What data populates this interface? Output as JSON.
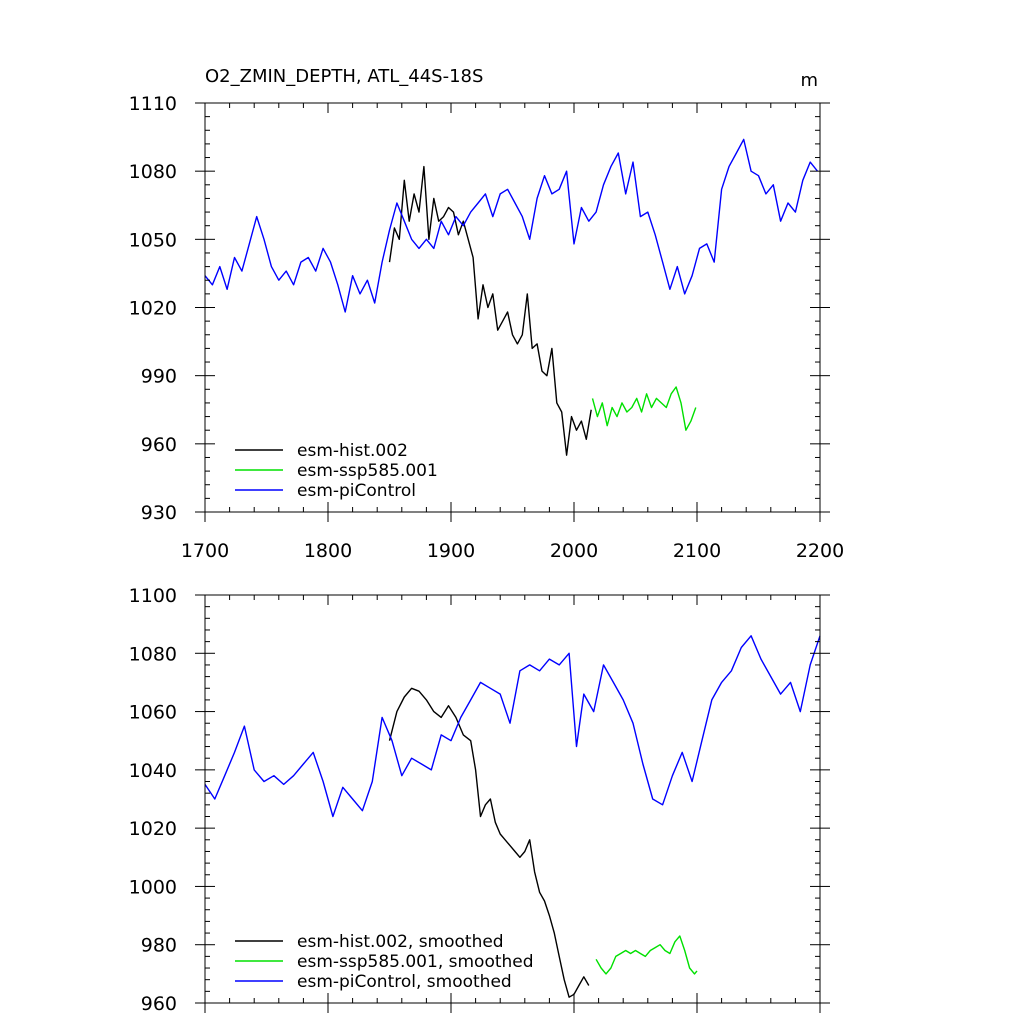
{
  "figure": {
    "title": "O2_ZMIN_DEPTH, ATL_44S-18S",
    "units": "m"
  },
  "colors": {
    "esm-hist": "#000000",
    "esm-ssp585": "#00e000",
    "esm-piControl": "#0000ff",
    "axis": "#000000"
  },
  "chart_data": [
    {
      "type": "line",
      "panel": "top",
      "title": "O2_ZMIN_DEPTH, ATL_44S-18S",
      "units_label": "m",
      "xlim": [
        1700,
        2200
      ],
      "ylim": [
        930,
        1110
      ],
      "xticks": [
        1700,
        1800,
        1900,
        2000,
        2100,
        2200
      ],
      "yticks": [
        930,
        960,
        990,
        1020,
        1050,
        1080,
        1110
      ],
      "xtick_labels": [
        "1700",
        "1800",
        "1900",
        "2000",
        "2100",
        "2200"
      ],
      "ytick_labels": [
        "930",
        "960",
        "990",
        "1020",
        "1050",
        "1080",
        "1110"
      ],
      "legend_position": "bottom-left",
      "series": [
        {
          "name": "esm-hist.002",
          "color": "#000000",
          "x": [
            1850,
            1854,
            1858,
            1862,
            1866,
            1870,
            1874,
            1878,
            1882,
            1886,
            1890,
            1894,
            1898,
            1902,
            1906,
            1910,
            1914,
            1918,
            1922,
            1926,
            1930,
            1934,
            1938,
            1942,
            1946,
            1950,
            1954,
            1958,
            1962,
            1966,
            1970,
            1974,
            1978,
            1982,
            1986,
            1990,
            1994,
            1998,
            2002,
            2006,
            2010,
            2014
          ],
          "values": [
            1040,
            1055,
            1050,
            1076,
            1058,
            1070,
            1062,
            1082,
            1050,
            1068,
            1058,
            1060,
            1064,
            1062,
            1052,
            1058,
            1050,
            1042,
            1015,
            1030,
            1020,
            1026,
            1010,
            1014,
            1018,
            1008,
            1004,
            1008,
            1026,
            1002,
            1004,
            992,
            990,
            1002,
            978,
            974,
            955,
            972,
            966,
            970,
            962,
            975
          ]
        },
        {
          "name": "esm-ssp585.001",
          "color": "#00e000",
          "x": [
            2015,
            2019,
            2023,
            2027,
            2031,
            2035,
            2039,
            2043,
            2047,
            2051,
            2055,
            2059,
            2063,
            2067,
            2071,
            2075,
            2079,
            2083,
            2087,
            2091,
            2095,
            2099
          ],
          "values": [
            980,
            972,
            978,
            968,
            976,
            972,
            978,
            974,
            976,
            980,
            974,
            982,
            976,
            980,
            978,
            976,
            982,
            985,
            978,
            966,
            970,
            976
          ]
        },
        {
          "name": "esm-piControl",
          "color": "#0000ff",
          "x": [
            1700,
            1706,
            1712,
            1718,
            1724,
            1730,
            1736,
            1742,
            1748,
            1754,
            1760,
            1766,
            1772,
            1778,
            1784,
            1790,
            1796,
            1802,
            1808,
            1814,
            1820,
            1826,
            1832,
            1838,
            1844,
            1850,
            1856,
            1862,
            1868,
            1874,
            1880,
            1886,
            1892,
            1898,
            1904,
            1910,
            1916,
            1922,
            1928,
            1934,
            1940,
            1946,
            1952,
            1958,
            1964,
            1970,
            1976,
            1982,
            1988,
            1994,
            2000,
            2006,
            2012,
            2018,
            2024,
            2030,
            2036,
            2042,
            2048,
            2054,
            2060,
            2066,
            2072,
            2078,
            2084,
            2090,
            2096,
            2102,
            2108,
            2114,
            2120,
            2126,
            2132,
            2138,
            2144,
            2150,
            2156,
            2162,
            2168,
            2174,
            2180,
            2186,
            2192,
            2198
          ],
          "values": [
            1034,
            1030,
            1038,
            1028,
            1042,
            1036,
            1048,
            1060,
            1050,
            1038,
            1032,
            1036,
            1030,
            1040,
            1042,
            1036,
            1046,
            1040,
            1030,
            1018,
            1034,
            1026,
            1032,
            1022,
            1040,
            1054,
            1066,
            1058,
            1050,
            1046,
            1050,
            1046,
            1058,
            1052,
            1060,
            1056,
            1062,
            1066,
            1070,
            1060,
            1070,
            1072,
            1066,
            1060,
            1050,
            1068,
            1078,
            1070,
            1072,
            1080,
            1048,
            1064,
            1058,
            1062,
            1074,
            1082,
            1088,
            1070,
            1084,
            1060,
            1062,
            1052,
            1040,
            1028,
            1038,
            1026,
            1034,
            1046,
            1048,
            1040,
            1072,
            1082,
            1088,
            1094,
            1080,
            1078,
            1070,
            1074,
            1058,
            1066,
            1062,
            1076,
            1084,
            1080
          ]
        }
      ]
    },
    {
      "type": "line",
      "panel": "bottom",
      "xlim": [
        1700,
        2200
      ],
      "ylim": [
        960,
        1100
      ],
      "xticks": [
        1700,
        1800,
        1900,
        2000,
        2100,
        2200
      ],
      "yticks": [
        960,
        980,
        1000,
        1020,
        1040,
        1060,
        1080,
        1100
      ],
      "ytick_labels": [
        "960",
        "980",
        "1000",
        "1020",
        "1040",
        "1060",
        "1080",
        "1100"
      ],
      "legend_position": "bottom-left",
      "series": [
        {
          "name": "esm-hist.002, smoothed",
          "color": "#000000",
          "x": [
            1850,
            1856,
            1862,
            1868,
            1874,
            1880,
            1886,
            1892,
            1898,
            1904,
            1910,
            1916,
            1920,
            1924,
            1928,
            1932,
            1936,
            1940,
            1944,
            1948,
            1952,
            1956,
            1960,
            1964,
            1968,
            1972,
            1976,
            1980,
            1984,
            1988,
            1992,
            1996,
            2000,
            2004,
            2008,
            2012
          ],
          "values": [
            1050,
            1060,
            1065,
            1068,
            1067,
            1064,
            1060,
            1058,
            1062,
            1058,
            1052,
            1050,
            1040,
            1024,
            1028,
            1030,
            1022,
            1018,
            1016,
            1014,
            1012,
            1010,
            1012,
            1016,
            1005,
            998,
            995,
            990,
            984,
            976,
            968,
            962,
            963,
            966,
            969,
            966
          ]
        },
        {
          "name": "esm-ssp585.001, smoothed",
          "color": "#00e000",
          "x": [
            2018,
            2022,
            2026,
            2030,
            2034,
            2038,
            2042,
            2046,
            2050,
            2054,
            2058,
            2062,
            2066,
            2070,
            2074,
            2078,
            2082,
            2086,
            2090,
            2094,
            2098,
            2100
          ],
          "values": [
            975,
            972,
            970,
            972,
            976,
            977,
            978,
            977,
            978,
            977,
            976,
            978,
            979,
            980,
            978,
            977,
            981,
            983,
            978,
            972,
            970,
            971
          ]
        },
        {
          "name": "esm-piControl, smoothed",
          "color": "#0000ff",
          "x": [
            1700,
            1708,
            1716,
            1724,
            1732,
            1740,
            1748,
            1756,
            1764,
            1772,
            1780,
            1788,
            1796,
            1804,
            1812,
            1820,
            1828,
            1836,
            1844,
            1852,
            1860,
            1868,
            1876,
            1884,
            1892,
            1900,
            1908,
            1916,
            1924,
            1932,
            1940,
            1948,
            1956,
            1964,
            1972,
            1980,
            1988,
            1996,
            2002,
            2008,
            2016,
            2024,
            2032,
            2040,
            2048,
            2056,
            2064,
            2072,
            2080,
            2088,
            2096,
            2104,
            2112,
            2120,
            2128,
            2136,
            2144,
            2152,
            2160,
            2168,
            2176,
            2184,
            2192,
            2200
          ],
          "values": [
            1035,
            1030,
            1038,
            1046,
            1055,
            1040,
            1036,
            1038,
            1035,
            1038,
            1042,
            1046,
            1036,
            1024,
            1034,
            1030,
            1026,
            1036,
            1058,
            1050,
            1038,
            1044,
            1042,
            1040,
            1052,
            1050,
            1058,
            1064,
            1070,
            1068,
            1066,
            1056,
            1074,
            1076,
            1074,
            1078,
            1076,
            1080,
            1048,
            1066,
            1060,
            1076,
            1070,
            1064,
            1056,
            1042,
            1030,
            1028,
            1038,
            1046,
            1036,
            1050,
            1064,
            1070,
            1074,
            1082,
            1086,
            1078,
            1072,
            1066,
            1070,
            1060,
            1076,
            1086
          ]
        }
      ]
    }
  ]
}
